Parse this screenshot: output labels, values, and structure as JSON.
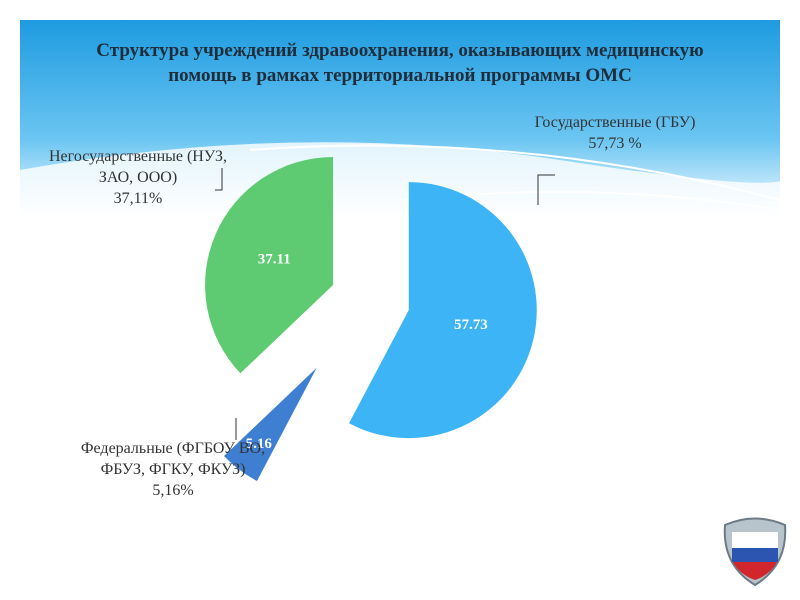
{
  "chart_data": {
    "type": "pie",
    "title": "Структура учреждений здравоохранения, оказывающих медицинскую помощь в рамках территориальной программы ОМС",
    "categories": [
      "Государственные (ГБУ)",
      "Федеральные (ФГБОУ ВО, ФБУЗ, ФГКУ, ФКУЗ)",
      "Негосударственные (НУЗ, ЗАО, ООО)"
    ],
    "values": [
      57.73,
      5.16,
      37.11
    ],
    "value_labels": [
      "57,73 %",
      "5,16%",
      "37,11%"
    ],
    "colors": [
      "#3db4f6",
      "#3f7fd2",
      "#5ecb72"
    ]
  }
}
